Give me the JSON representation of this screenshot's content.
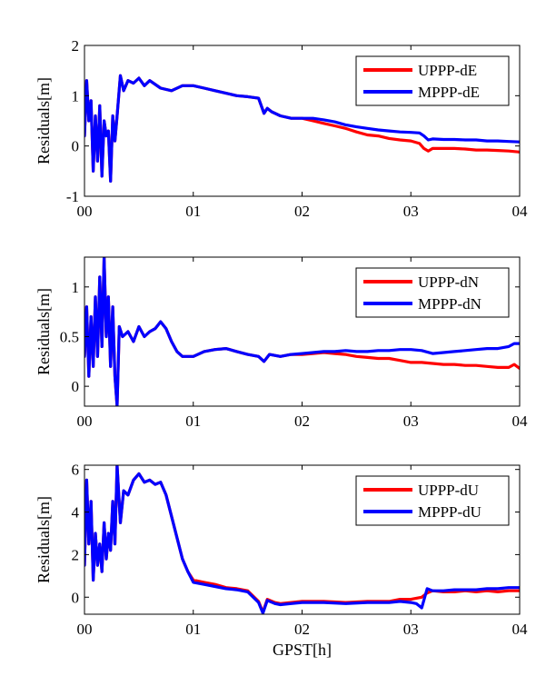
{
  "chart_data": [
    {
      "type": "line",
      "ylabel": "Residuals[m]",
      "xlabel": "",
      "xlim": [
        0,
        4
      ],
      "ylim": [
        -1,
        2
      ],
      "x_ticks": [
        0,
        1,
        2,
        3,
        4
      ],
      "x_tick_labels": [
        "00",
        "01",
        "02",
        "03",
        "04"
      ],
      "y_ticks": [
        -1,
        0,
        1,
        2
      ],
      "y_tick_labels": [
        "-1",
        "0",
        "1",
        "2"
      ],
      "legend_position": "top-right",
      "series": [
        {
          "name": "UPPP-dE",
          "color": "#ff0000",
          "x": [
            0,
            0.02,
            0.04,
            0.06,
            0.08,
            0.1,
            0.12,
            0.14,
            0.16,
            0.18,
            0.2,
            0.22,
            0.24,
            0.26,
            0.28,
            0.3,
            0.33,
            0.36,
            0.4,
            0.45,
            0.5,
            0.55,
            0.6,
            0.7,
            0.8,
            0.9,
            1.0,
            1.1,
            1.2,
            1.3,
            1.4,
            1.5,
            1.6,
            1.65,
            1.68,
            1.72,
            1.8,
            1.9,
            2.0,
            2.1,
            2.2,
            2.3,
            2.4,
            2.5,
            2.6,
            2.7,
            2.8,
            2.9,
            3.0,
            3.08,
            3.12,
            3.16,
            3.2,
            3.3,
            3.4,
            3.5,
            3.6,
            3.7,
            3.8,
            3.9,
            4.0
          ],
          "values": [
            0.2,
            1.3,
            0.5,
            0.9,
            -0.5,
            0.6,
            -0.3,
            0.8,
            -0.6,
            0.5,
            0.2,
            0.3,
            -0.7,
            0.6,
            0.1,
            0.6,
            1.4,
            1.1,
            1.3,
            1.25,
            1.35,
            1.2,
            1.3,
            1.15,
            1.1,
            1.2,
            1.2,
            1.15,
            1.1,
            1.05,
            1.0,
            0.98,
            0.95,
            0.65,
            0.75,
            0.68,
            0.6,
            0.55,
            0.55,
            0.5,
            0.45,
            0.4,
            0.35,
            0.28,
            0.22,
            0.2,
            0.15,
            0.12,
            0.1,
            0.05,
            -0.05,
            -0.1,
            -0.05,
            -0.05,
            -0.05,
            -0.06,
            -0.08,
            -0.08,
            -0.09,
            -0.1,
            -0.12
          ]
        },
        {
          "name": "MPPP-dE",
          "color": "#0000ff",
          "x": [
            0,
            0.02,
            0.04,
            0.06,
            0.08,
            0.1,
            0.12,
            0.14,
            0.16,
            0.18,
            0.2,
            0.22,
            0.24,
            0.26,
            0.28,
            0.3,
            0.33,
            0.36,
            0.4,
            0.45,
            0.5,
            0.55,
            0.6,
            0.7,
            0.8,
            0.9,
            1.0,
            1.1,
            1.2,
            1.3,
            1.4,
            1.5,
            1.6,
            1.65,
            1.68,
            1.72,
            1.8,
            1.9,
            2.0,
            2.1,
            2.2,
            2.3,
            2.4,
            2.5,
            2.6,
            2.7,
            2.8,
            2.9,
            3.0,
            3.08,
            3.12,
            3.16,
            3.2,
            3.3,
            3.4,
            3.5,
            3.6,
            3.7,
            3.8,
            3.9,
            4.0
          ],
          "values": [
            0.2,
            1.3,
            0.5,
            0.9,
            -0.5,
            0.6,
            -0.3,
            0.8,
            -0.6,
            0.5,
            0.2,
            0.3,
            -0.7,
            0.6,
            0.1,
            0.6,
            1.4,
            1.1,
            1.3,
            1.25,
            1.35,
            1.2,
            1.3,
            1.15,
            1.1,
            1.2,
            1.2,
            1.15,
            1.1,
            1.05,
            1.0,
            0.98,
            0.95,
            0.65,
            0.75,
            0.68,
            0.6,
            0.55,
            0.55,
            0.55,
            0.52,
            0.48,
            0.42,
            0.38,
            0.35,
            0.32,
            0.3,
            0.28,
            0.27,
            0.26,
            0.2,
            0.12,
            0.14,
            0.13,
            0.13,
            0.12,
            0.12,
            0.1,
            0.1,
            0.09,
            0.08
          ]
        }
      ]
    },
    {
      "type": "line",
      "ylabel": "Residuals[m]",
      "xlabel": "",
      "xlim": [
        0,
        4
      ],
      "ylim": [
        -0.2,
        1.3
      ],
      "x_ticks": [
        0,
        1,
        2,
        3,
        4
      ],
      "x_tick_labels": [
        "00",
        "01",
        "02",
        "03",
        "04"
      ],
      "y_ticks": [
        0,
        0.5,
        1
      ],
      "y_tick_labels": [
        "0",
        "0.5",
        "1"
      ],
      "legend_position": "top-right",
      "series": [
        {
          "name": "UPPP-dN",
          "color": "#ff0000",
          "x": [
            0,
            0.02,
            0.04,
            0.06,
            0.08,
            0.1,
            0.12,
            0.14,
            0.16,
            0.18,
            0.2,
            0.22,
            0.24,
            0.26,
            0.28,
            0.3,
            0.32,
            0.35,
            0.4,
            0.45,
            0.5,
            0.55,
            0.6,
            0.65,
            0.7,
            0.75,
            0.8,
            0.85,
            0.9,
            0.95,
            1.0,
            1.1,
            1.2,
            1.3,
            1.4,
            1.5,
            1.6,
            1.65,
            1.7,
            1.8,
            1.9,
            2.0,
            2.1,
            2.2,
            2.3,
            2.4,
            2.5,
            2.6,
            2.7,
            2.8,
            2.9,
            3.0,
            3.1,
            3.2,
            3.3,
            3.4,
            3.5,
            3.6,
            3.7,
            3.8,
            3.9,
            3.95,
            4.0
          ],
          "values": [
            0.3,
            0.8,
            0.1,
            0.7,
            0.2,
            0.9,
            0.3,
            1.1,
            0.4,
            1.3,
            0.5,
            0.9,
            0.2,
            0.8,
            0.1,
            -0.2,
            0.6,
            0.5,
            0.55,
            0.45,
            0.6,
            0.5,
            0.55,
            0.58,
            0.65,
            0.58,
            0.45,
            0.35,
            0.3,
            0.3,
            0.3,
            0.35,
            0.37,
            0.38,
            0.35,
            0.32,
            0.3,
            0.25,
            0.32,
            0.3,
            0.32,
            0.32,
            0.33,
            0.34,
            0.33,
            0.32,
            0.3,
            0.29,
            0.28,
            0.28,
            0.26,
            0.24,
            0.24,
            0.23,
            0.22,
            0.22,
            0.21,
            0.21,
            0.2,
            0.19,
            0.19,
            0.22,
            0.18
          ]
        },
        {
          "name": "MPPP-dN",
          "color": "#0000ff",
          "x": [
            0,
            0.02,
            0.04,
            0.06,
            0.08,
            0.1,
            0.12,
            0.14,
            0.16,
            0.18,
            0.2,
            0.22,
            0.24,
            0.26,
            0.28,
            0.3,
            0.32,
            0.35,
            0.4,
            0.45,
            0.5,
            0.55,
            0.6,
            0.65,
            0.7,
            0.75,
            0.8,
            0.85,
            0.9,
            0.95,
            1.0,
            1.1,
            1.2,
            1.3,
            1.4,
            1.5,
            1.6,
            1.65,
            1.7,
            1.8,
            1.9,
            2.0,
            2.1,
            2.2,
            2.3,
            2.4,
            2.5,
            2.6,
            2.7,
            2.8,
            2.9,
            3.0,
            3.1,
            3.2,
            3.3,
            3.4,
            3.5,
            3.6,
            3.7,
            3.8,
            3.9,
            3.95,
            4.0
          ],
          "values": [
            0.3,
            0.8,
            0.1,
            0.7,
            0.2,
            0.9,
            0.3,
            1.1,
            0.4,
            1.3,
            0.5,
            0.9,
            0.2,
            0.8,
            0.1,
            -0.2,
            0.6,
            0.5,
            0.55,
            0.45,
            0.6,
            0.5,
            0.55,
            0.58,
            0.65,
            0.58,
            0.45,
            0.35,
            0.3,
            0.3,
            0.3,
            0.35,
            0.37,
            0.38,
            0.35,
            0.32,
            0.3,
            0.25,
            0.32,
            0.3,
            0.32,
            0.33,
            0.34,
            0.35,
            0.35,
            0.36,
            0.35,
            0.35,
            0.36,
            0.36,
            0.37,
            0.37,
            0.36,
            0.33,
            0.34,
            0.35,
            0.36,
            0.37,
            0.38,
            0.38,
            0.4,
            0.43,
            0.43
          ]
        }
      ]
    },
    {
      "type": "line",
      "ylabel": "Residuals[m]",
      "xlabel": "GPST[h]",
      "xlim": [
        0,
        4
      ],
      "ylim": [
        -0.8,
        6.2
      ],
      "x_ticks": [
        0,
        1,
        2,
        3,
        4
      ],
      "x_tick_labels": [
        "00",
        "01",
        "02",
        "03",
        "04"
      ],
      "y_ticks": [
        0,
        2,
        4,
        6
      ],
      "y_tick_labels": [
        "0",
        "2",
        "4",
        "6"
      ],
      "legend_position": "top-right",
      "series": [
        {
          "name": "UPPP-dU",
          "color": "#ff0000",
          "x": [
            0,
            0.02,
            0.04,
            0.06,
            0.08,
            0.1,
            0.12,
            0.14,
            0.16,
            0.18,
            0.2,
            0.22,
            0.24,
            0.26,
            0.28,
            0.3,
            0.33,
            0.36,
            0.4,
            0.45,
            0.5,
            0.55,
            0.6,
            0.65,
            0.7,
            0.75,
            0.8,
            0.85,
            0.9,
            0.95,
            1.0,
            1.1,
            1.2,
            1.3,
            1.4,
            1.5,
            1.6,
            1.64,
            1.68,
            1.75,
            1.8,
            1.9,
            2.0,
            2.2,
            2.4,
            2.6,
            2.8,
            2.9,
            3.0,
            3.05,
            3.1,
            3.15,
            3.2,
            3.3,
            3.4,
            3.5,
            3.6,
            3.7,
            3.8,
            3.9,
            4.0
          ],
          "values": [
            1.5,
            5.5,
            2.5,
            4.5,
            0.8,
            3.0,
            1.5,
            2.5,
            1.2,
            3.5,
            1.8,
            3.0,
            2.2,
            4.5,
            2.5,
            6.2,
            3.5,
            5.0,
            4.8,
            5.5,
            5.8,
            5.4,
            5.5,
            5.3,
            5.4,
            4.8,
            3.8,
            2.8,
            1.8,
            1.2,
            0.8,
            0.7,
            0.6,
            0.45,
            0.4,
            0.3,
            -0.2,
            -0.7,
            -0.1,
            -0.25,
            -0.3,
            -0.25,
            -0.2,
            -0.2,
            -0.25,
            -0.2,
            -0.2,
            -0.1,
            -0.1,
            -0.05,
            0.0,
            0.2,
            0.3,
            0.25,
            0.25,
            0.3,
            0.25,
            0.3,
            0.25,
            0.3,
            0.3
          ]
        },
        {
          "name": "MPPP-dU",
          "color": "#0000ff",
          "x": [
            0,
            0.02,
            0.04,
            0.06,
            0.08,
            0.1,
            0.12,
            0.14,
            0.16,
            0.18,
            0.2,
            0.22,
            0.24,
            0.26,
            0.28,
            0.3,
            0.33,
            0.36,
            0.4,
            0.45,
            0.5,
            0.55,
            0.6,
            0.65,
            0.7,
            0.75,
            0.8,
            0.85,
            0.9,
            0.95,
            1.0,
            1.1,
            1.2,
            1.3,
            1.4,
            1.5,
            1.6,
            1.64,
            1.68,
            1.75,
            1.8,
            1.9,
            2.0,
            2.2,
            2.4,
            2.6,
            2.8,
            2.9,
            3.0,
            3.05,
            3.1,
            3.15,
            3.2,
            3.3,
            3.4,
            3.5,
            3.6,
            3.7,
            3.8,
            3.9,
            4.0
          ],
          "values": [
            1.5,
            5.5,
            2.5,
            4.5,
            0.8,
            3.0,
            1.5,
            2.5,
            1.2,
            3.5,
            1.8,
            3.0,
            2.2,
            4.5,
            2.5,
            6.2,
            3.5,
            5.0,
            4.8,
            5.5,
            5.8,
            5.4,
            5.5,
            5.3,
            5.4,
            4.8,
            3.8,
            2.8,
            1.8,
            1.2,
            0.7,
            0.6,
            0.5,
            0.4,
            0.35,
            0.25,
            -0.25,
            -0.75,
            -0.15,
            -0.3,
            -0.35,
            -0.3,
            -0.25,
            -0.25,
            -0.3,
            -0.25,
            -0.25,
            -0.2,
            -0.25,
            -0.3,
            -0.5,
            0.4,
            0.3,
            0.3,
            0.35,
            0.35,
            0.35,
            0.4,
            0.4,
            0.45,
            0.45
          ]
        }
      ]
    }
  ]
}
